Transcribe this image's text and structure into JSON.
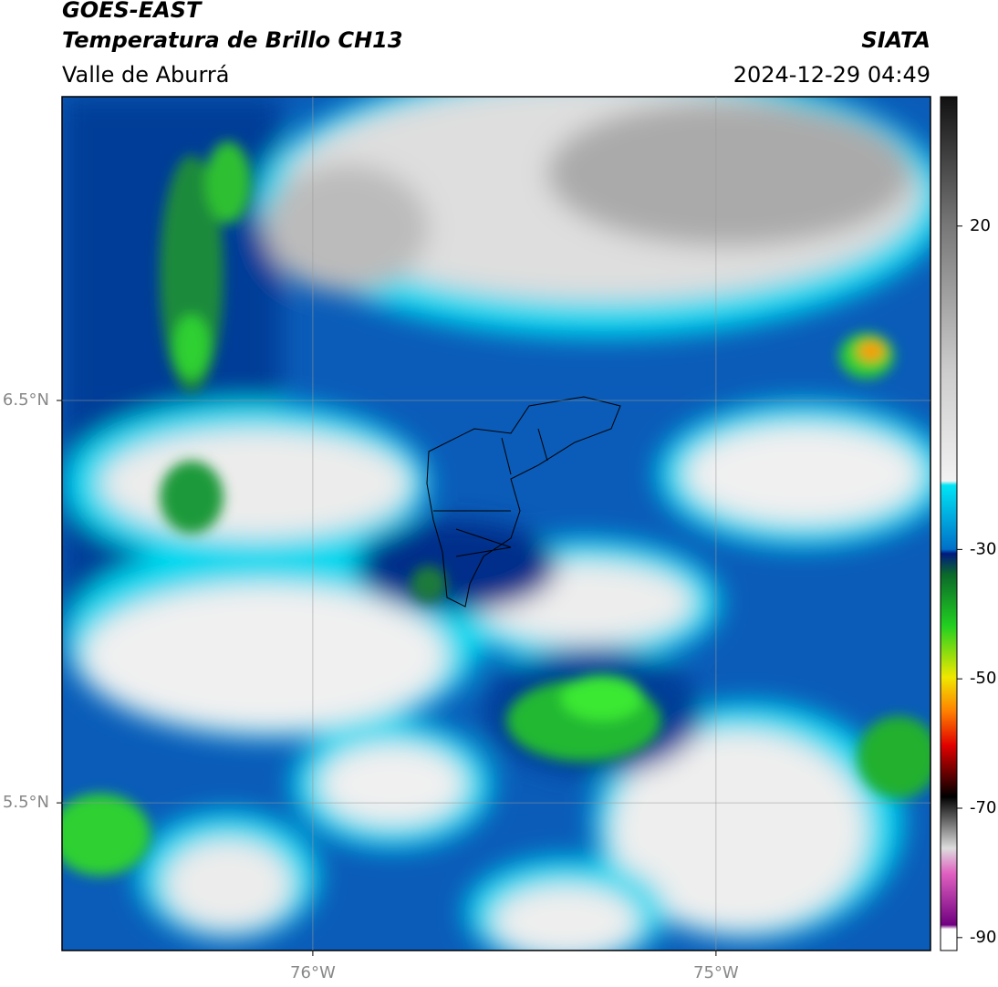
{
  "header": {
    "title": "GOES-EAST",
    "subtitle": "Temperatura de Brillo CH13",
    "region": "Valle de Aburrá",
    "organization": "SIATA",
    "datetime": "2024-12-29 04:49"
  },
  "map": {
    "xlim": [
      -76.622,
      -74.468
    ],
    "ylim": [
      5.133,
      7.255
    ],
    "xticks": [
      {
        "value": -76,
        "label": "76°W"
      },
      {
        "value": -75,
        "label": "75°W"
      }
    ],
    "yticks": [
      {
        "value": 6.5,
        "label": "6.5°N"
      },
      {
        "value": 5.5,
        "label": "5.5°N"
      }
    ],
    "grid": true
  },
  "colorbar": {
    "lim": [
      -92,
      40
    ],
    "ticks": [
      20,
      -30,
      -50,
      -70,
      -90
    ]
  }
}
